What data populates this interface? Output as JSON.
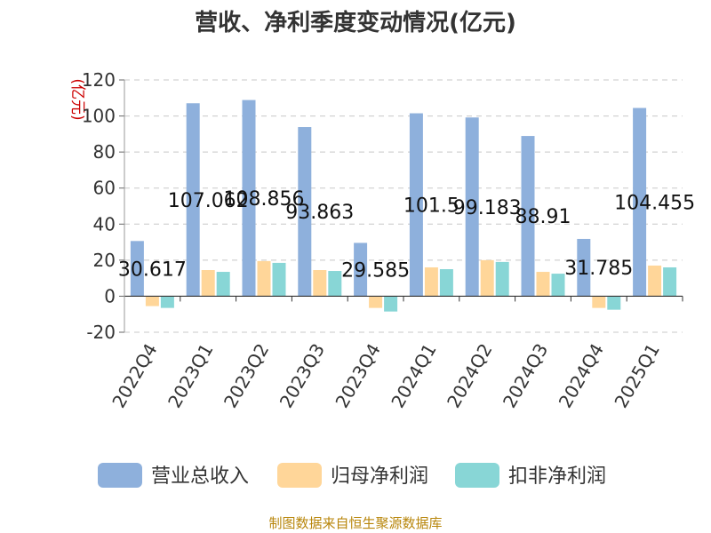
{
  "chart_data": {
    "type": "bar",
    "title": "营收、净利季度变动情况(亿元)",
    "unit_label": "(亿元)",
    "categories": [
      "2022Q4",
      "2023Q1",
      "2023Q2",
      "2023Q3",
      "2023Q4",
      "2024Q1",
      "2024Q2",
      "2024Q3",
      "2024Q4",
      "2025Q1"
    ],
    "series": [
      {
        "name": "营业总收入",
        "color": "#8eb0dc",
        "values": [
          30.617,
          107.062,
          108.856,
          93.863,
          29.585,
          101.5,
          99.183,
          88.91,
          31.785,
          104.455
        ]
      },
      {
        "name": "归母净利润",
        "color": "#ffd699",
        "values": [
          -5.5,
          14.5,
          19.5,
          14.5,
          -6.5,
          16,
          20,
          13.5,
          -6.5,
          17
        ]
      },
      {
        "name": "扣非净利润",
        "color": "#88d6d6",
        "values": [
          -6.5,
          13.5,
          18.5,
          14,
          -8.5,
          15,
          19,
          12.5,
          -7.5,
          16
        ]
      }
    ],
    "data_labels": [
      "30.617",
      "107.062",
      "108.856",
      "93.863",
      "29.585",
      "101.5",
      "99.183",
      "88.91",
      "31.785",
      "104.455"
    ],
    "yticks": [
      -20,
      0,
      20,
      40,
      60,
      80,
      100,
      120
    ],
    "ylim": [
      -20,
      120
    ],
    "grid": true,
    "legend_position": "bottom"
  },
  "source": "制图数据来自恒生聚源数据库"
}
